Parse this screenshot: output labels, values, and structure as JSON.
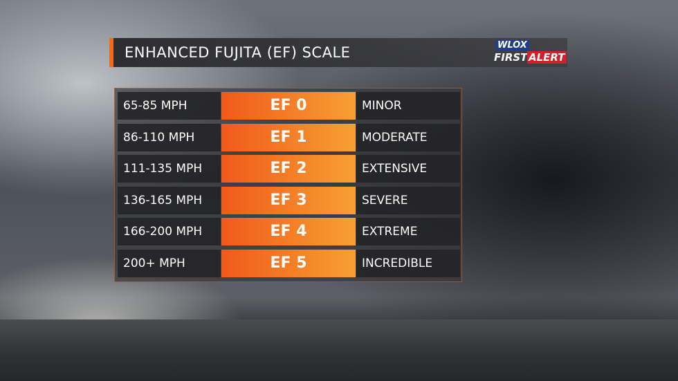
{
  "header": {
    "title": "ENHANCED FUJITA (EF) SCALE",
    "logo": {
      "station": "WLOX",
      "line1": "FIRST",
      "line2": "ALERT"
    }
  },
  "table": {
    "rows": [
      [
        "65-85 MPH",
        "EF 0",
        "MINOR"
      ],
      [
        "86-110 MPH",
        "EF 1",
        "MODERATE"
      ],
      [
        "111-135 MPH",
        "EF 2",
        "EXTENSIVE"
      ],
      [
        "136-165 MPH",
        "EF 3",
        "SEVERE"
      ],
      [
        "166-200 MPH",
        "EF 4",
        "EXTREME"
      ],
      [
        "200+ MPH",
        "EF 5",
        "INCREDIBLE"
      ]
    ]
  }
}
